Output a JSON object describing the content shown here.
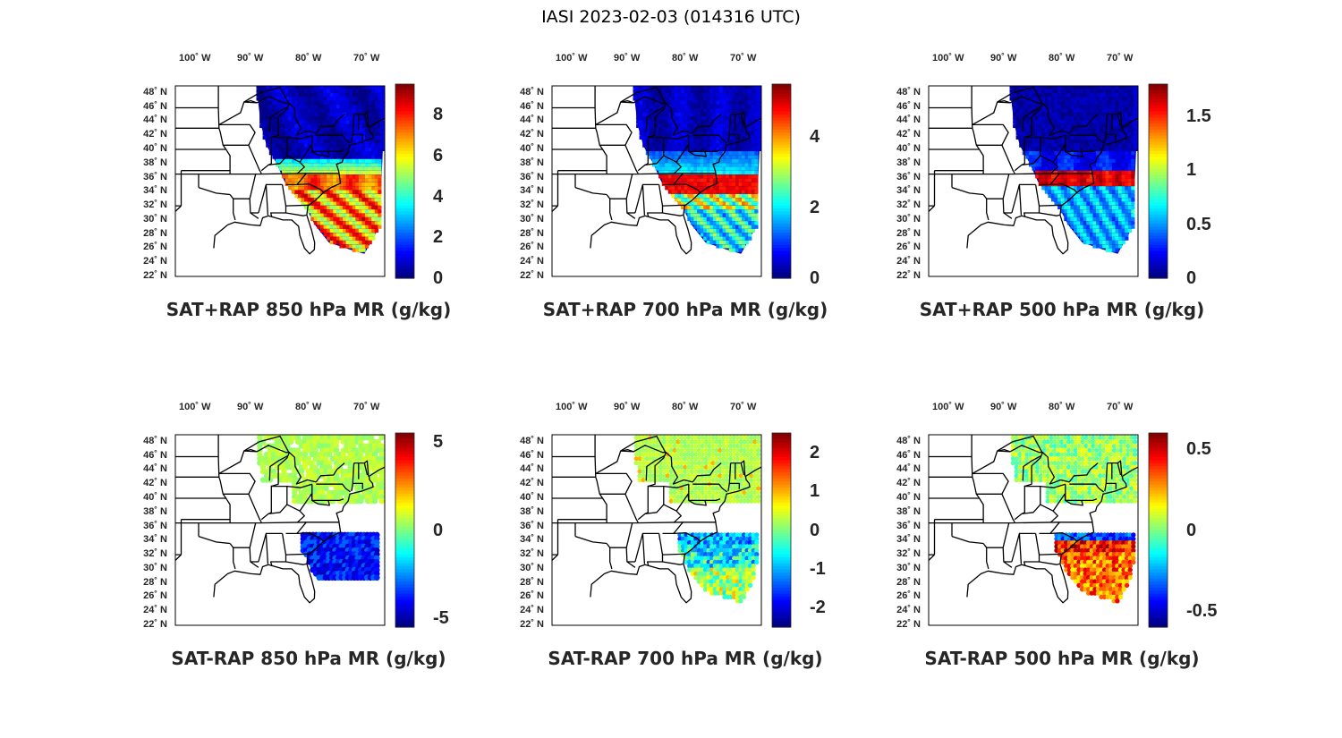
{
  "figure_title": "IASI 2023-02-03 (014316 UTC)",
  "lon_labels": [
    "100˚ W",
    "90˚ W",
    "80˚ W",
    "70˚ W"
  ],
  "lat_labels": [
    "48˚ N",
    "46˚ N",
    "44˚ N",
    "42˚ N",
    "40˚ N",
    "38˚ N",
    "36˚ N",
    "34˚ N",
    "32˚ N",
    "30˚ N",
    "28˚ N",
    "26˚ N",
    "24˚ N",
    "22˚ N"
  ],
  "map": {
    "lon_range": [
      -104,
      -68
    ],
    "lat_range": [
      22,
      49
    ],
    "overlay": "US state borders, eastern United States",
    "colormap": "jet"
  },
  "panels": [
    {
      "title": "SAT+RAP 850 hPa MR (g/kg)",
      "colorbar": {
        "ticks": [
          "8",
          "6",
          "4",
          "2",
          "0"
        ],
        "tick_values": [
          8,
          6,
          4,
          2,
          0
        ],
        "range": [
          0,
          9.5
        ]
      }
    },
    {
      "title": "SAT+RAP 700 hPa MR (g/kg)",
      "colorbar": {
        "ticks": [
          "4",
          "2",
          "0"
        ],
        "tick_values": [
          4,
          2,
          0
        ],
        "range": [
          0,
          5.5
        ]
      }
    },
    {
      "title": "SAT+RAP 500 hPa MR (g/kg)",
      "colorbar": {
        "ticks": [
          "1.5",
          "1",
          "0.5",
          "0"
        ],
        "tick_values": [
          1.5,
          1,
          0.5,
          0
        ],
        "range": [
          0,
          1.8
        ]
      }
    },
    {
      "title": "SAT-RAP 850 hPa MR (g/kg)",
      "colorbar": {
        "ticks": [
          "5",
          "0",
          "-5"
        ],
        "tick_values": [
          5,
          0,
          -5
        ],
        "range": [
          -5.5,
          5.5
        ]
      }
    },
    {
      "title": "SAT-RAP 700 hPa MR (g/kg)",
      "colorbar": {
        "ticks": [
          "2",
          "1",
          "0",
          "-1",
          "-2"
        ],
        "tick_values": [
          2,
          1,
          0,
          -1,
          -2
        ],
        "range": [
          -2.5,
          2.5
        ]
      }
    },
    {
      "title": "SAT-RAP 500 hPa MR (g/kg)",
      "colorbar": {
        "ticks": [
          "0.5",
          "0",
          "-0.5"
        ],
        "tick_values": [
          0.5,
          0,
          -0.5
        ],
        "range": [
          -0.6,
          0.6
        ]
      }
    }
  ]
}
